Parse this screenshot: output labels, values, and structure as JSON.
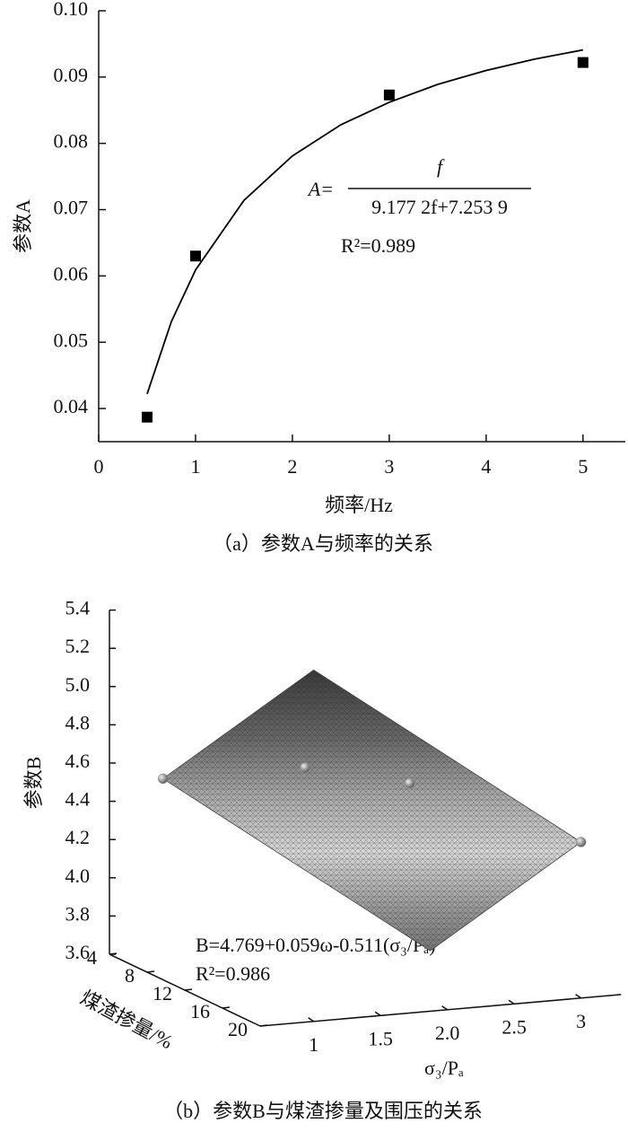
{
  "chart_data": [
    {
      "type": "scatter",
      "caption": "（a）参数A与频率的关系",
      "x_label": "频率/Hz",
      "y_label": "参数A",
      "x": [
        0.5,
        1,
        3,
        5
      ],
      "values": [
        0.0387,
        0.063,
        0.0873,
        0.0922
      ],
      "color": "#000000",
      "fit": {
        "x": [
          0.5,
          0.75,
          1,
          1.5,
          2,
          2.5,
          3,
          3.5,
          4,
          4.5,
          5
        ],
        "values": [
          0.0422,
          0.0531,
          0.0609,
          0.0714,
          0.0781,
          0.0828,
          0.0862,
          0.0889,
          0.091,
          0.0927,
          0.0941
        ]
      },
      "annotations": {
        "equation_lhs": "A=",
        "numerator": "f",
        "denominator": "9.177 2f+7.253 9",
        "r2": "R²=0.989"
      },
      "xlim": [
        0,
        5.4
      ],
      "ylim": [
        0.035,
        0.1
      ],
      "xticks": [
        0,
        1,
        2,
        3,
        4,
        5
      ],
      "yticks": [
        0.04,
        0.05,
        0.06,
        0.07,
        0.08,
        0.09,
        {
          "value": 0.1,
          "label": "0.10"
        }
      ]
    },
    {
      "type": "surface3d",
      "caption": "（b）参数B与煤渣掺量及围压的关系",
      "x_label": "煤渣掺量/%",
      "y_label": "σ₃/Pₐ",
      "z_label": "参数B",
      "surface": {
        "x": [
          4,
          20
        ],
        "y": [
          1,
          3
        ],
        "values": [
          [
            4.494,
            3.472
          ],
          [
            5.438,
            4.416
          ]
        ]
      },
      "points": {
        "x": [
          4,
          12,
          16,
          20
        ],
        "y": [
          1,
          1.5,
          2,
          3
        ],
        "values": [
          4.494,
          4.71,
          4.691,
          4.416
        ]
      },
      "color": "#888888",
      "annotations": {
        "equation": "B=4.769+0.059ω-0.511(σ₃/Pₐ)",
        "r2": "R²=0.986"
      },
      "xlim": [
        4,
        20
      ],
      "ylim": [
        0.6,
        3.3
      ],
      "zlim": [
        3.6,
        5.4
      ],
      "xticks": [
        4,
        8,
        12,
        16,
        20
      ],
      "yticks": [
        1,
        1.5,
        {
          "value": 2,
          "label": "2.0"
        },
        2.5,
        3
      ],
      "zticks": [
        3.6,
        3.8,
        {
          "value": 4,
          "label": "4.0"
        },
        4.2,
        4.4,
        4.6,
        4.8,
        {
          "value": 5,
          "label": "5.0"
        },
        5.2,
        5.4
      ]
    }
  ]
}
